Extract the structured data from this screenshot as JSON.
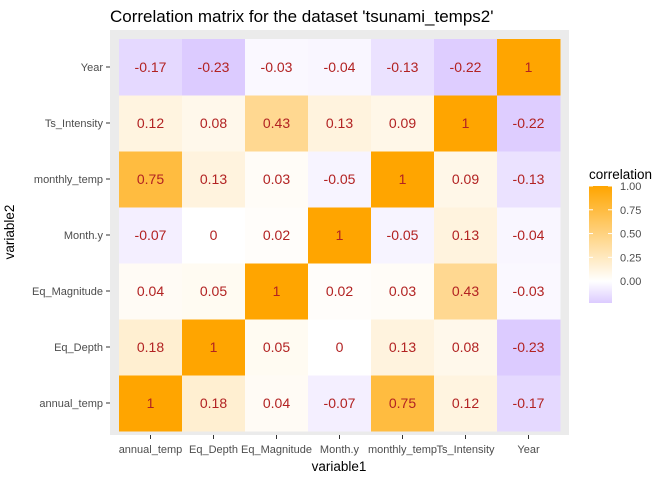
{
  "chart_data": {
    "type": "heatmap",
    "title": "Correlation matrix for the dataset 'tsunami_temps2'",
    "xlabel": "variable1",
    "ylabel": "variable2",
    "x_categories": [
      "annual_temp",
      "Eq_Depth",
      "Eq_Magnitude",
      "Month.y",
      "monthly_temp",
      "Ts_Intensity",
      "Year"
    ],
    "y_categories": [
      "annual_temp",
      "Eq_Depth",
      "Eq_Magnitude",
      "Month.y",
      "monthly_temp",
      "Ts_Intensity",
      "Year"
    ],
    "values": [
      [
        1,
        0.18,
        0.04,
        -0.07,
        0.75,
        0.12,
        -0.17
      ],
      [
        0.18,
        1,
        0.05,
        0,
        0.13,
        0.08,
        -0.23
      ],
      [
        0.04,
        0.05,
        1,
        0.02,
        0.03,
        0.43,
        -0.03
      ],
      [
        -0.07,
        0,
        0.02,
        1,
        -0.05,
        0.13,
        -0.04
      ],
      [
        0.75,
        0.13,
        0.03,
        -0.05,
        1,
        0.09,
        -0.13
      ],
      [
        0.12,
        0.08,
        0.43,
        0.13,
        0.09,
        1,
        -0.22
      ],
      [
        -0.17,
        -0.23,
        -0.03,
        -0.04,
        -0.13,
        -0.22,
        1
      ]
    ],
    "legend": {
      "title": "correlation",
      "ticks": [
        "0.00",
        "0.25",
        "0.50",
        "0.75",
        "1.00"
      ],
      "tick_values": [
        0,
        0.25,
        0.5,
        0.75,
        1
      ],
      "range": [
        -0.23,
        1
      ]
    },
    "colors": {
      "low": "#dccbff",
      "mid": "#ffffff",
      "high": "#ffa500",
      "label": "#b22222",
      "panel_bg": "#ebebeb"
    }
  }
}
